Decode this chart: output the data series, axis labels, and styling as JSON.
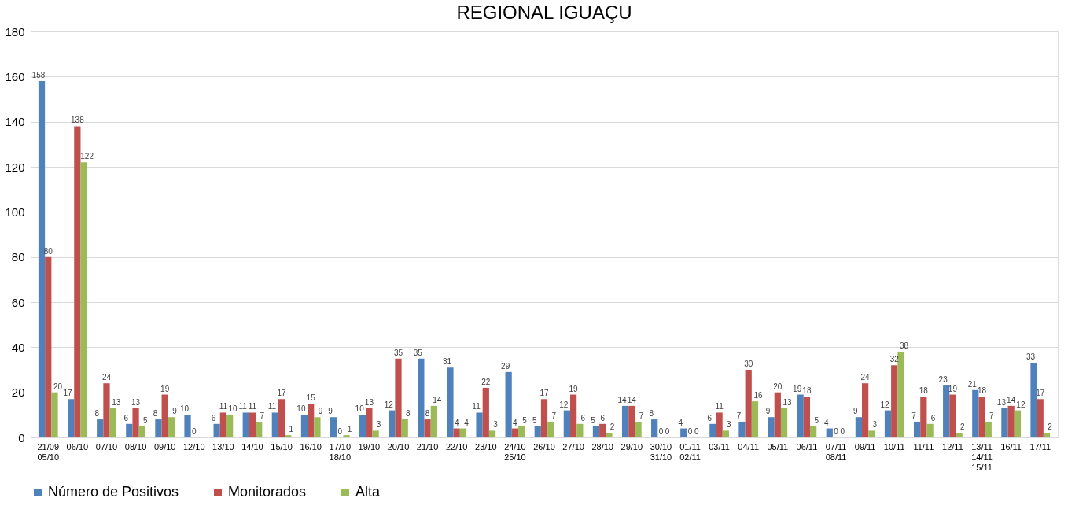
{
  "chart_data": {
    "type": "bar",
    "title": "REGIONAL IGUAÇU",
    "categories": [
      "21/09 05/10",
      "06/10",
      "07/10",
      "08/10",
      "09/10",
      "12/10",
      "13/10",
      "14/10",
      "15/10",
      "16/10",
      "17/10 18/10",
      "19/10",
      "20/10",
      "21/10",
      "22/10",
      "23/10",
      "24/10 25/10",
      "26/10",
      "27/10",
      "28/10",
      "29/10",
      "30/10 31/10",
      "01/11 02/11",
      "03/11",
      "04/11",
      "05/11",
      "06/11",
      "07/11 08/11",
      "09/11",
      "10/11",
      "11/11",
      "12/11",
      "13/11 14/11 15/11",
      "16/11",
      "17/11"
    ],
    "series": [
      {
        "name": "Número de Positivos",
        "color": "#4f81bd",
        "values": [
          158,
          17,
          8,
          6,
          8,
          10,
          6,
          11,
          11,
          10,
          9,
          10,
          12,
          35,
          31,
          11,
          29,
          5,
          12,
          5,
          14,
          8,
          4,
          6,
          7,
          9,
          19,
          4,
          9,
          12,
          7,
          23,
          21,
          13,
          33
        ]
      },
      {
        "name": "Monitorados",
        "color": "#c0504d",
        "values": [
          80,
          138,
          24,
          13,
          19,
          0,
          11,
          11,
          17,
          15,
          0,
          13,
          35,
          8,
          4,
          22,
          4,
          17,
          19,
          6,
          14,
          0,
          0,
          11,
          30,
          20,
          18,
          0,
          24,
          32,
          18,
          19,
          18,
          14,
          17
        ]
      },
      {
        "name": "Alta",
        "color": "#9bbb59",
        "values": [
          20,
          122,
          13,
          5,
          9,
          null,
          10,
          7,
          1,
          9,
          1,
          3,
          8,
          14,
          4,
          3,
          5,
          7,
          6,
          2,
          7,
          0,
          0,
          3,
          16,
          13,
          5,
          0,
          3,
          38,
          6,
          2,
          7,
          12,
          2
        ]
      }
    ],
    "ylim": [
      0,
      180
    ],
    "yticks": [
      0,
      20,
      40,
      60,
      80,
      100,
      120,
      140,
      160,
      180
    ],
    "grid": "y",
    "legend": "bottom",
    "data_labels": true
  }
}
